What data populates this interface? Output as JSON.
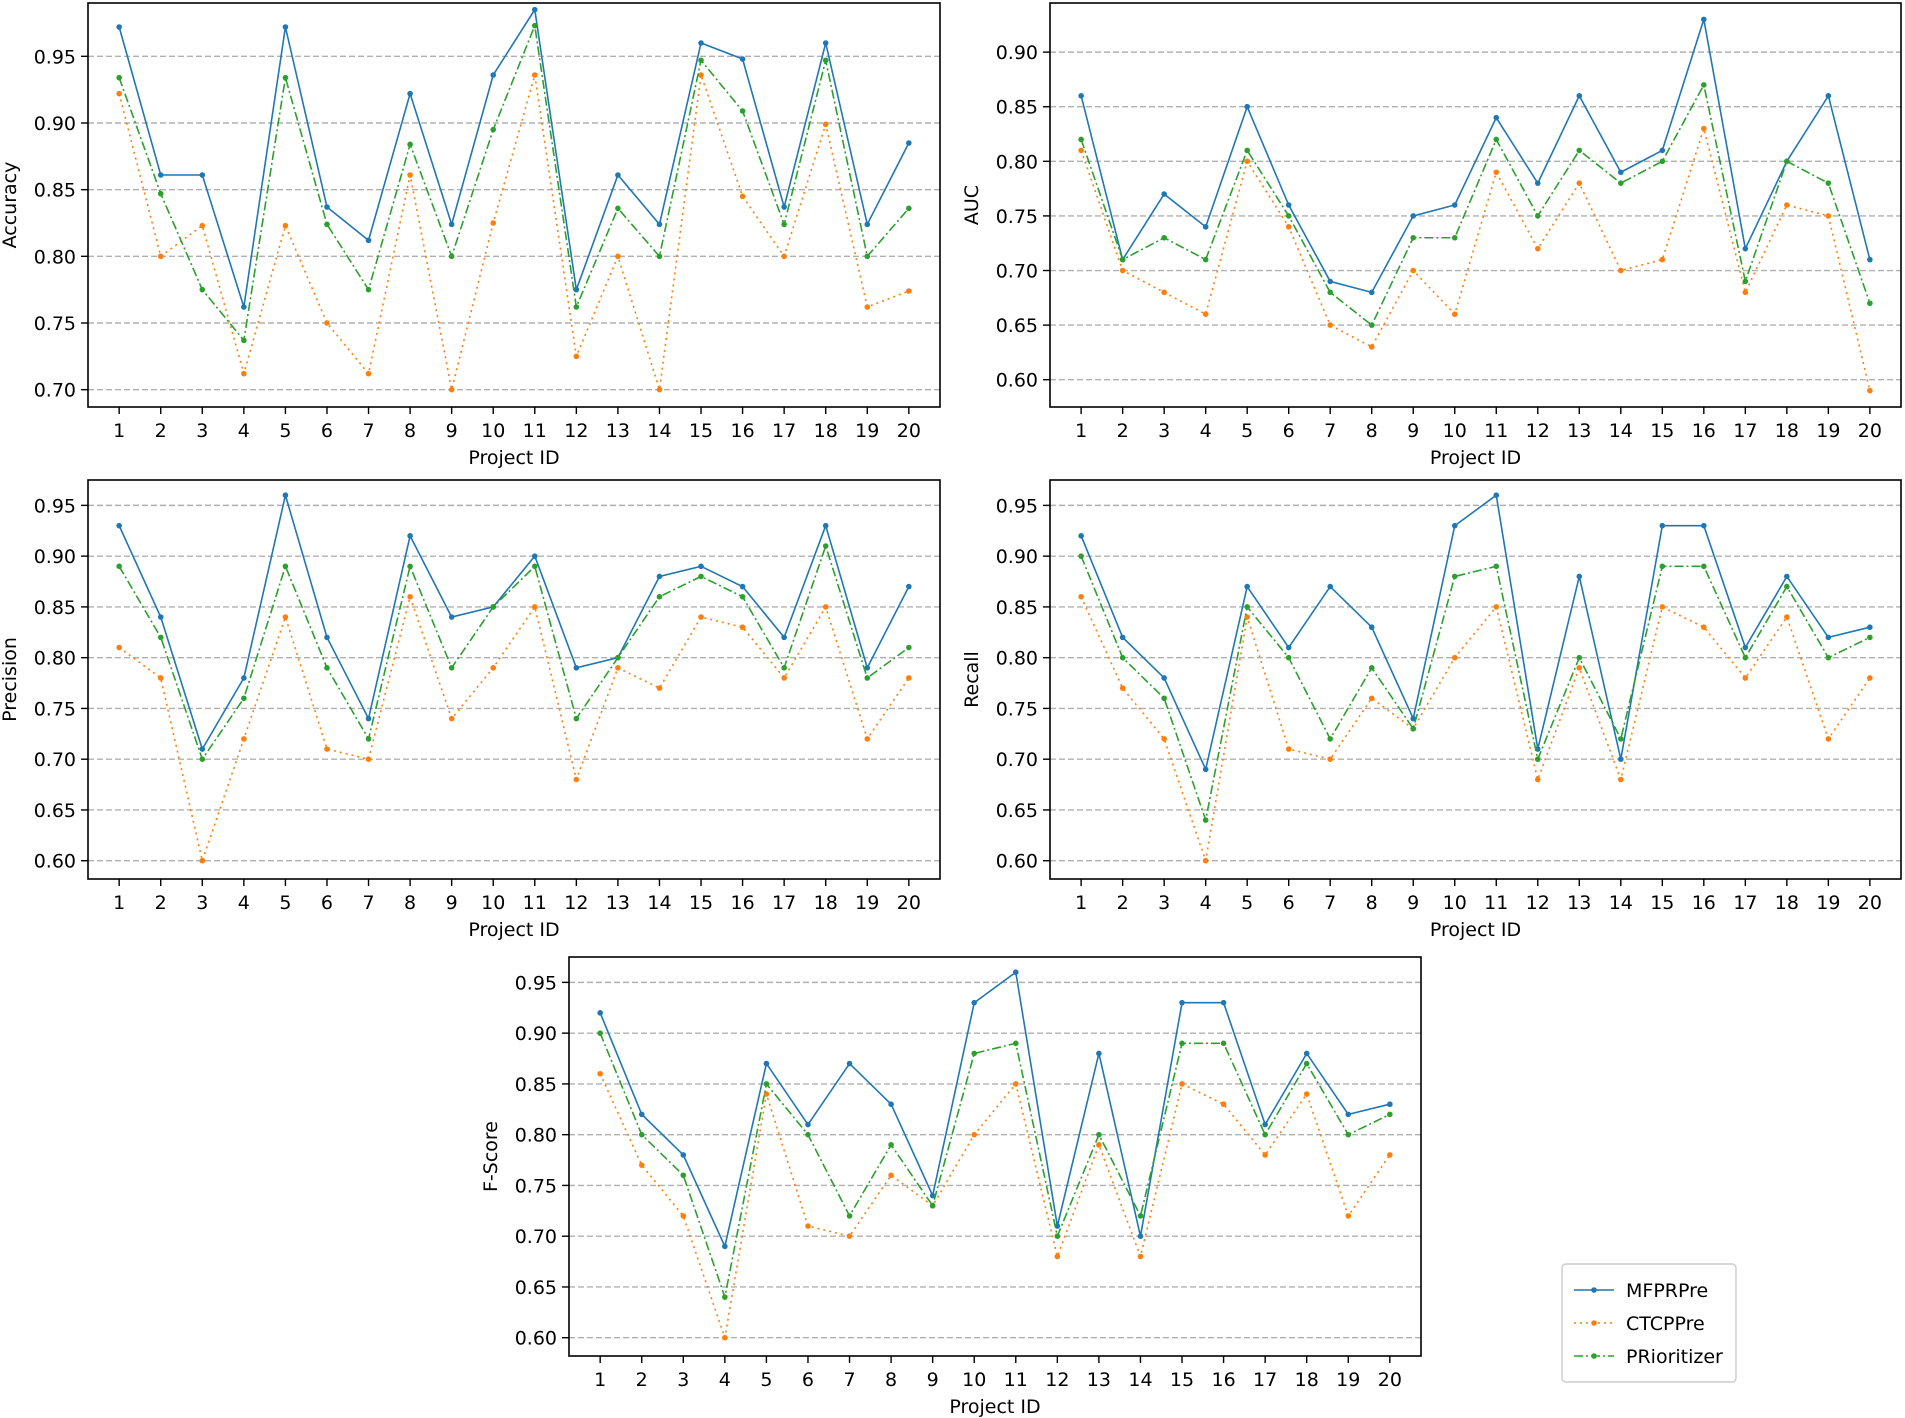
{
  "colors": {
    "MFPRPre": "#1f77b4",
    "CTCPPre": "#ff7f0e",
    "PRioritizer": "#2ca02c",
    "grid": "#b0b0b0"
  },
  "legend": {
    "placement": "outside-bottom-right",
    "entries": [
      "MFPRPre",
      "CTCPPre",
      "PRioritizer"
    ]
  },
  "chart_data": [
    {
      "id": "accuracy",
      "type": "line",
      "xlabel": "Project ID",
      "ylabel": "Accuracy",
      "x": [
        1,
        2,
        3,
        4,
        5,
        6,
        7,
        8,
        9,
        10,
        11,
        12,
        13,
        14,
        15,
        16,
        17,
        18,
        19,
        20
      ],
      "ylim": [
        0.687,
        0.99
      ],
      "yticks": [
        "0.70",
        "0.75",
        "0.80",
        "0.85",
        "0.90",
        "0.95"
      ],
      "grid": "horizontal-dashed",
      "series": [
        {
          "name": "MFPRPre",
          "values": [
            0.972,
            0.861,
            0.861,
            0.762,
            0.972,
            0.837,
            0.812,
            0.922,
            0.824,
            0.936,
            0.985,
            0.775,
            0.861,
            0.824,
            0.96,
            0.948,
            0.837,
            0.96,
            0.824,
            0.885
          ]
        },
        {
          "name": "CTCPPre",
          "values": [
            0.922,
            0.8,
            0.823,
            0.712,
            0.823,
            0.75,
            0.712,
            0.861,
            0.7,
            0.825,
            0.936,
            0.725,
            0.8,
            0.7,
            0.936,
            0.845,
            0.8,
            0.899,
            0.762,
            0.774
          ]
        },
        {
          "name": "PRioritizer",
          "values": [
            0.934,
            0.847,
            0.775,
            0.737,
            0.934,
            0.824,
            0.775,
            0.884,
            0.8,
            0.895,
            0.973,
            0.762,
            0.836,
            0.8,
            0.947,
            0.909,
            0.824,
            0.947,
            0.8,
            0.836
          ]
        }
      ]
    },
    {
      "id": "auc",
      "type": "line",
      "xlabel": "Project ID",
      "ylabel": "AUC",
      "x": [
        1,
        2,
        3,
        4,
        5,
        6,
        7,
        8,
        9,
        10,
        11,
        12,
        13,
        14,
        15,
        16,
        17,
        18,
        19,
        20
      ],
      "ylim": [
        0.575,
        0.945
      ],
      "yticks": [
        "0.60",
        "0.65",
        "0.70",
        "0.75",
        "0.80",
        "0.85",
        "0.90"
      ],
      "grid": "horizontal-dashed",
      "series": [
        {
          "name": "MFPRPre",
          "values": [
            0.86,
            0.71,
            0.77,
            0.74,
            0.85,
            0.76,
            0.69,
            0.68,
            0.75,
            0.76,
            0.84,
            0.78,
            0.86,
            0.79,
            0.81,
            0.93,
            0.72,
            0.8,
            0.86,
            0.71
          ]
        },
        {
          "name": "CTCPPre",
          "values": [
            0.81,
            0.7,
            0.68,
            0.66,
            0.8,
            0.74,
            0.65,
            0.63,
            0.7,
            0.66,
            0.79,
            0.72,
            0.78,
            0.7,
            0.71,
            0.83,
            0.68,
            0.76,
            0.75,
            0.59
          ]
        },
        {
          "name": "PRioritizer",
          "values": [
            0.82,
            0.71,
            0.73,
            0.71,
            0.81,
            0.75,
            0.68,
            0.65,
            0.73,
            0.73,
            0.82,
            0.75,
            0.81,
            0.78,
            0.8,
            0.87,
            0.69,
            0.8,
            0.78,
            0.67
          ]
        }
      ]
    },
    {
      "id": "precision",
      "type": "line",
      "xlabel": "Project ID",
      "ylabel": "Precision",
      "x": [
        1,
        2,
        3,
        4,
        5,
        6,
        7,
        8,
        9,
        10,
        11,
        12,
        13,
        14,
        15,
        16,
        17,
        18,
        19,
        20
      ],
      "ylim": [
        0.582,
        0.975
      ],
      "yticks": [
        "0.60",
        "0.65",
        "0.70",
        "0.75",
        "0.80",
        "0.85",
        "0.90",
        "0.95"
      ],
      "grid": "horizontal-dashed",
      "series": [
        {
          "name": "MFPRPre",
          "values": [
            0.93,
            0.84,
            0.71,
            0.78,
            0.96,
            0.82,
            0.74,
            0.92,
            0.84,
            0.85,
            0.9,
            0.79,
            0.8,
            0.88,
            0.89,
            0.87,
            0.82,
            0.93,
            0.79,
            0.87
          ]
        },
        {
          "name": "CTCPPre",
          "values": [
            0.81,
            0.78,
            0.6,
            0.72,
            0.84,
            0.71,
            0.7,
            0.86,
            0.74,
            0.79,
            0.85,
            0.68,
            0.79,
            0.77,
            0.84,
            0.83,
            0.78,
            0.85,
            0.72,
            0.78
          ]
        },
        {
          "name": "PRioritizer",
          "values": [
            0.89,
            0.82,
            0.7,
            0.76,
            0.89,
            0.79,
            0.72,
            0.89,
            0.79,
            0.85,
            0.89,
            0.74,
            0.8,
            0.86,
            0.88,
            0.86,
            0.79,
            0.91,
            0.78,
            0.81
          ]
        }
      ]
    },
    {
      "id": "recall",
      "type": "line",
      "xlabel": "Project ID",
      "ylabel": "Recall",
      "x": [
        1,
        2,
        3,
        4,
        5,
        6,
        7,
        8,
        9,
        10,
        11,
        12,
        13,
        14,
        15,
        16,
        17,
        18,
        19,
        20
      ],
      "ylim": [
        0.582,
        0.975
      ],
      "yticks": [
        "0.60",
        "0.65",
        "0.70",
        "0.75",
        "0.80",
        "0.85",
        "0.90",
        "0.95"
      ],
      "grid": "horizontal-dashed",
      "series": [
        {
          "name": "MFPRPre",
          "values": [
            0.92,
            0.82,
            0.78,
            0.69,
            0.87,
            0.81,
            0.87,
            0.83,
            0.74,
            0.93,
            0.96,
            0.71,
            0.88,
            0.7,
            0.93,
            0.93,
            0.81,
            0.88,
            0.82,
            0.83
          ]
        },
        {
          "name": "CTCPPre",
          "values": [
            0.86,
            0.77,
            0.72,
            0.6,
            0.84,
            0.71,
            0.7,
            0.76,
            0.73,
            0.8,
            0.85,
            0.68,
            0.79,
            0.68,
            0.85,
            0.83,
            0.78,
            0.84,
            0.72,
            0.78
          ]
        },
        {
          "name": "PRioritizer",
          "values": [
            0.9,
            0.8,
            0.76,
            0.64,
            0.85,
            0.8,
            0.72,
            0.79,
            0.73,
            0.88,
            0.89,
            0.7,
            0.8,
            0.72,
            0.89,
            0.89,
            0.8,
            0.87,
            0.8,
            0.82
          ]
        }
      ]
    },
    {
      "id": "fscore",
      "type": "line",
      "xlabel": "Project ID",
      "ylabel": "F-Score",
      "x": [
        1,
        2,
        3,
        4,
        5,
        6,
        7,
        8,
        9,
        10,
        11,
        12,
        13,
        14,
        15,
        16,
        17,
        18,
        19,
        20
      ],
      "ylim": [
        0.582,
        0.975
      ],
      "yticks": [
        "0.60",
        "0.65",
        "0.70",
        "0.75",
        "0.80",
        "0.85",
        "0.90",
        "0.95"
      ],
      "grid": "horizontal-dashed",
      "series": [
        {
          "name": "MFPRPre",
          "values": [
            0.92,
            0.82,
            0.78,
            0.69,
            0.87,
            0.81,
            0.87,
            0.83,
            0.74,
            0.93,
            0.96,
            0.71,
            0.88,
            0.7,
            0.93,
            0.93,
            0.81,
            0.88,
            0.82,
            0.83
          ]
        },
        {
          "name": "CTCPPre",
          "values": [
            0.86,
            0.77,
            0.72,
            0.6,
            0.84,
            0.71,
            0.7,
            0.76,
            0.73,
            0.8,
            0.85,
            0.68,
            0.79,
            0.68,
            0.85,
            0.83,
            0.78,
            0.84,
            0.72,
            0.78
          ]
        },
        {
          "name": "PRioritizer",
          "values": [
            0.9,
            0.8,
            0.76,
            0.64,
            0.85,
            0.8,
            0.72,
            0.79,
            0.73,
            0.88,
            0.89,
            0.7,
            0.8,
            0.72,
            0.89,
            0.89,
            0.8,
            0.87,
            0.8,
            0.82
          ]
        }
      ]
    }
  ]
}
